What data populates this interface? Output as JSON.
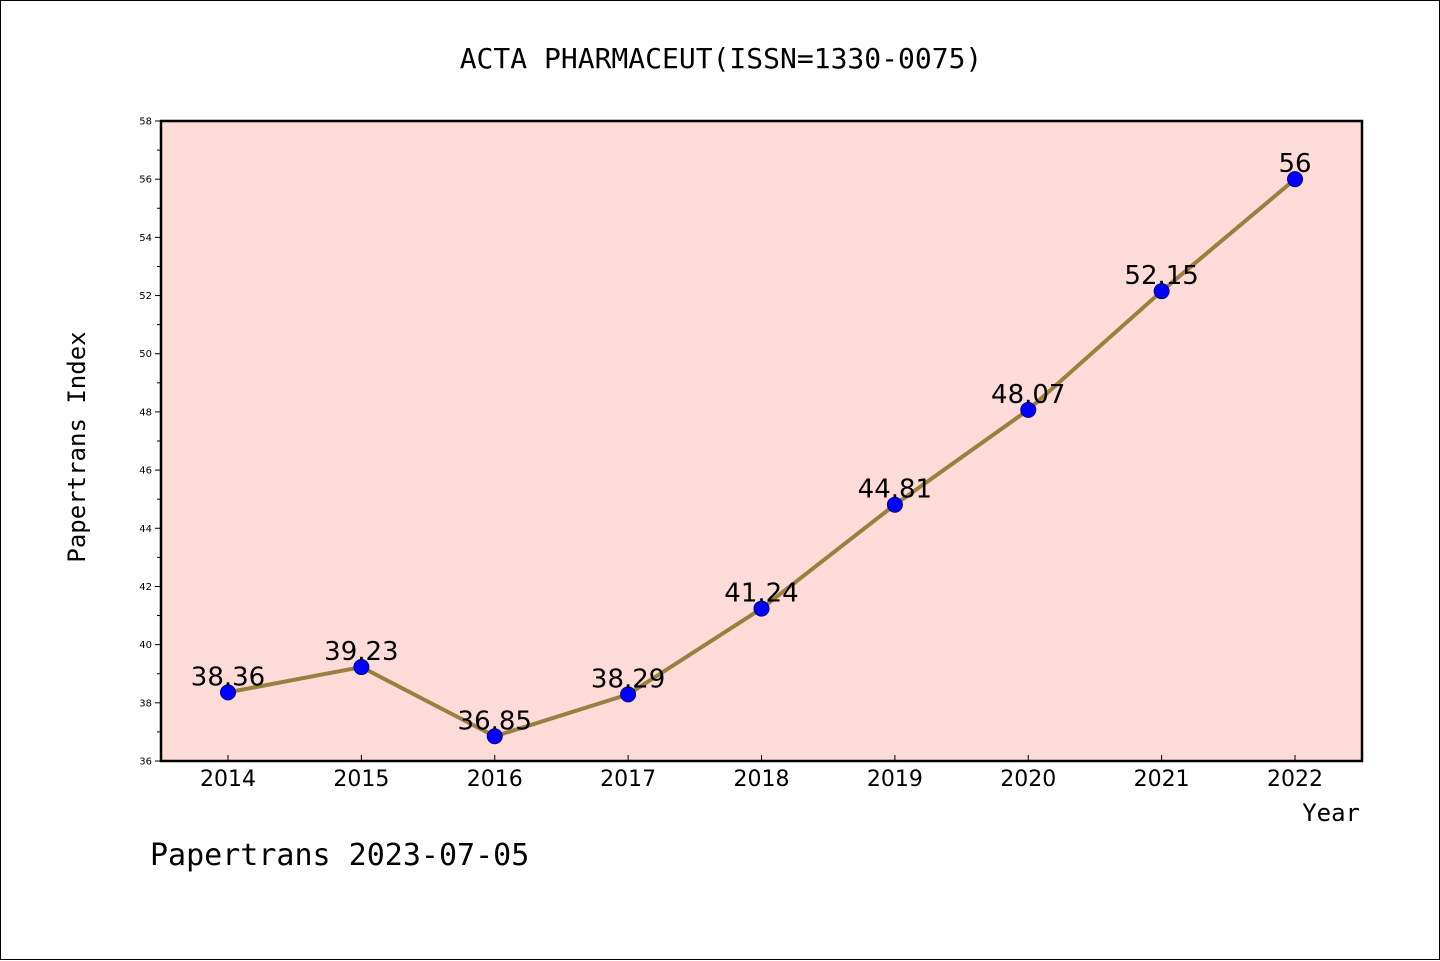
{
  "chart_data": {
    "type": "line",
    "title": "ACTA PHARMACEUT(ISSN=1330-0075)",
    "xlabel": "Year",
    "ylabel": "Papertrans Index",
    "x": [
      "2014",
      "2015",
      "2016",
      "2017",
      "2018",
      "2019",
      "2020",
      "2021",
      "2022"
    ],
    "series": [
      {
        "values": [
          38.36,
          39.23,
          36.85,
          38.29,
          41.24,
          44.81,
          48.07,
          52.15,
          56
        ],
        "labels": [
          "38.36",
          "39.23",
          "36.85",
          "38.29",
          "41.24",
          "44.81",
          "48.07",
          "52.15",
          "56"
        ]
      }
    ],
    "ylim": [
      36,
      58
    ],
    "yticks": [
      36,
      38,
      40,
      42,
      44,
      46,
      48,
      50,
      52,
      54,
      56,
      58
    ],
    "grid": false,
    "legend": "none",
    "colors": {
      "plot_background": "#fddbd9",
      "line": "#9a7f3e",
      "marker": "#0000ff",
      "marker_edge": "#000080",
      "axes": "#000000",
      "text": "#000000"
    }
  },
  "footer": {
    "watermark": "Papertrans 2023-07-05"
  }
}
